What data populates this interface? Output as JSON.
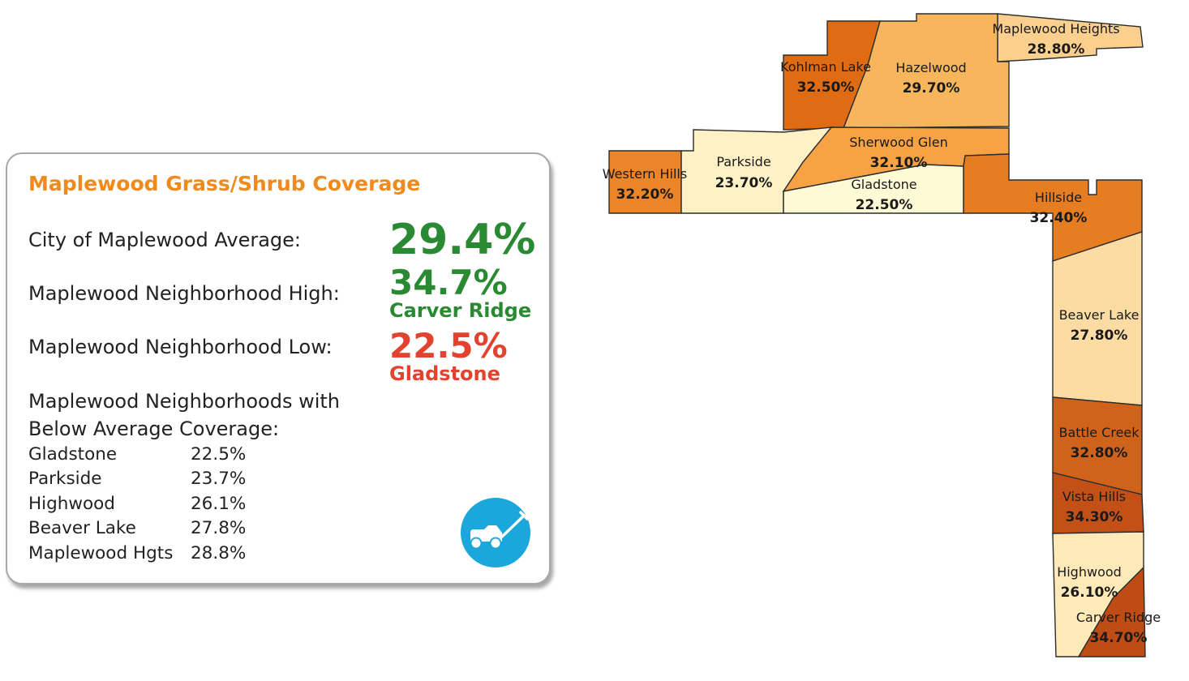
{
  "panel": {
    "title": "Maplewood Grass/Shrub Coverage",
    "average": {
      "label": "City of Maplewood Average:",
      "value": "29.4%"
    },
    "high": {
      "label": "Maplewood Neighborhood High:",
      "value": "34.7%",
      "name": "Carver Ridge"
    },
    "low": {
      "label": "Maplewood Neighborhood Low:",
      "value": "22.5%",
      "name": "Gladstone"
    },
    "below_label_line1": "Maplewood Neighborhoods with",
    "below_label_line2": "Below Average Coverage:",
    "below": [
      {
        "name": "Gladstone",
        "value": "22.5%"
      },
      {
        "name": "Parkside",
        "value": "23.7%"
      },
      {
        "name": "Highwood",
        "value": "26.1%"
      },
      {
        "name": "Beaver Lake",
        "value": "27.8%"
      },
      {
        "name": "Maplewood Hgts",
        "value": "28.8%"
      }
    ],
    "icon": "lawn-mower-icon"
  },
  "colors": {
    "title": "#f08a1c",
    "high": "#2a8a33",
    "low": "#e2432e",
    "icon_bg": "#1ba7dc"
  },
  "map": {
    "neighborhoods": [
      {
        "id": "maplewood-heights",
        "name": "Maplewood Heights",
        "value": "28.80%",
        "color": "#fbd08e"
      },
      {
        "id": "kohlman-lake",
        "name": "Kohlman Lake",
        "value": "32.50%",
        "color": "#df6c13"
      },
      {
        "id": "hazelwood",
        "name": "Hazelwood",
        "value": "29.70%",
        "color": "#f8b65c"
      },
      {
        "id": "western-hills",
        "name": "Western Hills",
        "value": "32.20%",
        "color": "#eb8527"
      },
      {
        "id": "parkside",
        "name": "Parkside",
        "value": "23.70%",
        "color": "#fff1c6"
      },
      {
        "id": "sherwood-glen",
        "name": "Sherwood Glen",
        "value": "32.10%",
        "color": "#f7a244"
      },
      {
        "id": "gladstone",
        "name": "Gladstone",
        "value": "22.50%",
        "color": "#fffad6"
      },
      {
        "id": "hillside",
        "name": "Hillside",
        "value": "32.40%",
        "color": "#e67d21"
      },
      {
        "id": "beaver-lake",
        "name": "Beaver Lake",
        "value": "27.80%",
        "color": "#fcdca3"
      },
      {
        "id": "battle-creek",
        "name": "Battle Creek",
        "value": "32.80%",
        "color": "#d0631b"
      },
      {
        "id": "vista-hills",
        "name": "Vista Hills",
        "value": "34.30%",
        "color": "#c35016"
      },
      {
        "id": "highwood",
        "name": "Highwood",
        "value": "26.10%",
        "color": "#fee9b8"
      },
      {
        "id": "carver-ridge",
        "name": "Carver Ridge",
        "value": "34.70%",
        "color": "#bd4c15"
      }
    ]
  }
}
